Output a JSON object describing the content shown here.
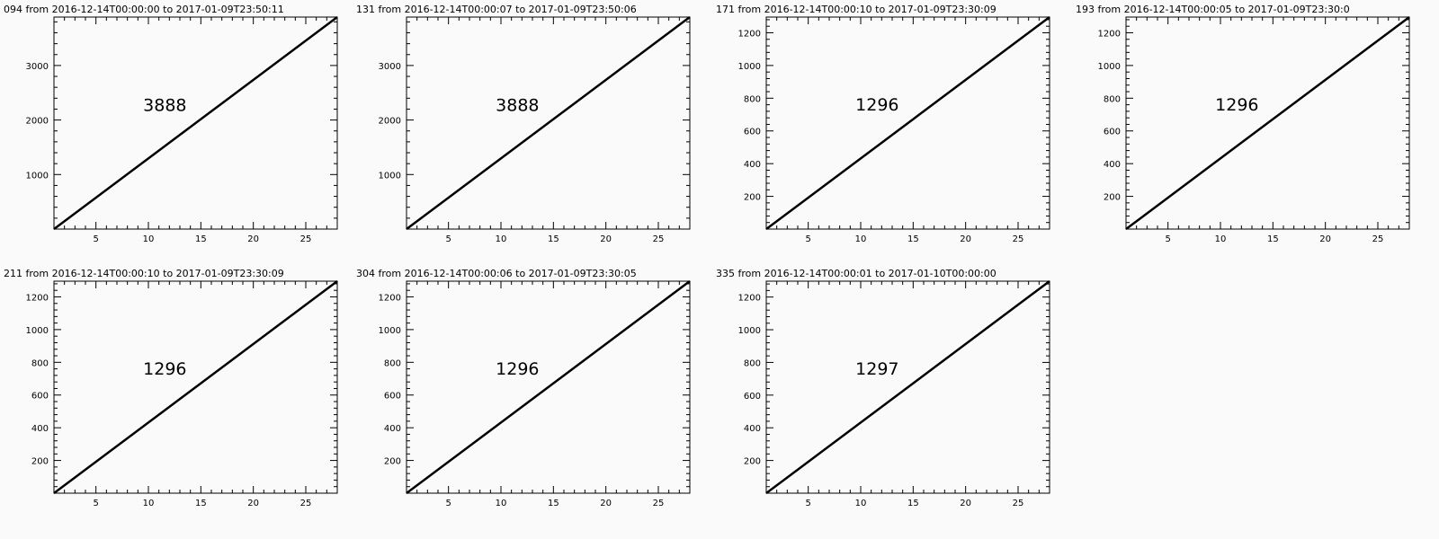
{
  "chart_data": [
    {
      "type": "line",
      "title": "094  from  2016-12-14T00:00:00  to  2017-01-09T23:50:11",
      "annotation": "3888",
      "xlim": [
        1,
        28
      ],
      "ylim": [
        0,
        3888
      ],
      "x_ticks": [
        5,
        10,
        15,
        20,
        25
      ],
      "y_ticks": [
        1000,
        2000,
        3000
      ],
      "x": [
        1,
        28
      ],
      "y": [
        0,
        3888
      ]
    },
    {
      "type": "line",
      "title": "131  from  2016-12-14T00:00:07  to  2017-01-09T23:50:06",
      "annotation": "3888",
      "xlim": [
        1,
        28
      ],
      "ylim": [
        0,
        3888
      ],
      "x_ticks": [
        5,
        10,
        15,
        20,
        25
      ],
      "y_ticks": [
        1000,
        2000,
        3000
      ],
      "x": [
        1,
        28
      ],
      "y": [
        0,
        3888
      ]
    },
    {
      "type": "line",
      "title": "171  from  2016-12-14T00:00:10  to  2017-01-09T23:30:09",
      "annotation": "1296",
      "xlim": [
        1,
        28
      ],
      "ylim": [
        0,
        1296
      ],
      "x_ticks": [
        5,
        10,
        15,
        20,
        25
      ],
      "y_ticks": [
        200,
        400,
        600,
        800,
        1000,
        1200
      ],
      "x": [
        1,
        28
      ],
      "y": [
        0,
        1296
      ]
    },
    {
      "type": "line",
      "title": "193  from  2016-12-14T00:00:05  to  2017-01-09T23:30:0",
      "annotation": "1296",
      "xlim": [
        1,
        28
      ],
      "ylim": [
        0,
        1296
      ],
      "x_ticks": [
        5,
        10,
        15,
        20,
        25
      ],
      "y_ticks": [
        200,
        400,
        600,
        800,
        1000,
        1200
      ],
      "x": [
        1,
        28
      ],
      "y": [
        0,
        1296
      ]
    },
    {
      "type": "line",
      "title": "211  from  2016-12-14T00:00:10  to  2017-01-09T23:30:09",
      "annotation": "1296",
      "xlim": [
        1,
        28
      ],
      "ylim": [
        0,
        1296
      ],
      "x_ticks": [
        5,
        10,
        15,
        20,
        25
      ],
      "y_ticks": [
        200,
        400,
        600,
        800,
        1000,
        1200
      ],
      "x": [
        1,
        28
      ],
      "y": [
        0,
        1296
      ]
    },
    {
      "type": "line",
      "title": "304  from  2016-12-14T00:00:06  to  2017-01-09T23:30:05",
      "annotation": "1296",
      "xlim": [
        1,
        28
      ],
      "ylim": [
        0,
        1296
      ],
      "x_ticks": [
        5,
        10,
        15,
        20,
        25
      ],
      "y_ticks": [
        200,
        400,
        600,
        800,
        1000,
        1200
      ],
      "x": [
        1,
        28
      ],
      "y": [
        0,
        1296
      ]
    },
    {
      "type": "line",
      "title": "335  from  2016-12-14T00:00:01  to  2017-01-10T00:00:00",
      "annotation": "1297",
      "xlim": [
        1,
        28
      ],
      "ylim": [
        0,
        1297
      ],
      "x_ticks": [
        5,
        10,
        15,
        20,
        25
      ],
      "y_ticks": [
        200,
        400,
        600,
        800,
        1000,
        1200
      ],
      "x": [
        1,
        28
      ],
      "y": [
        0,
        1297
      ]
    }
  ]
}
